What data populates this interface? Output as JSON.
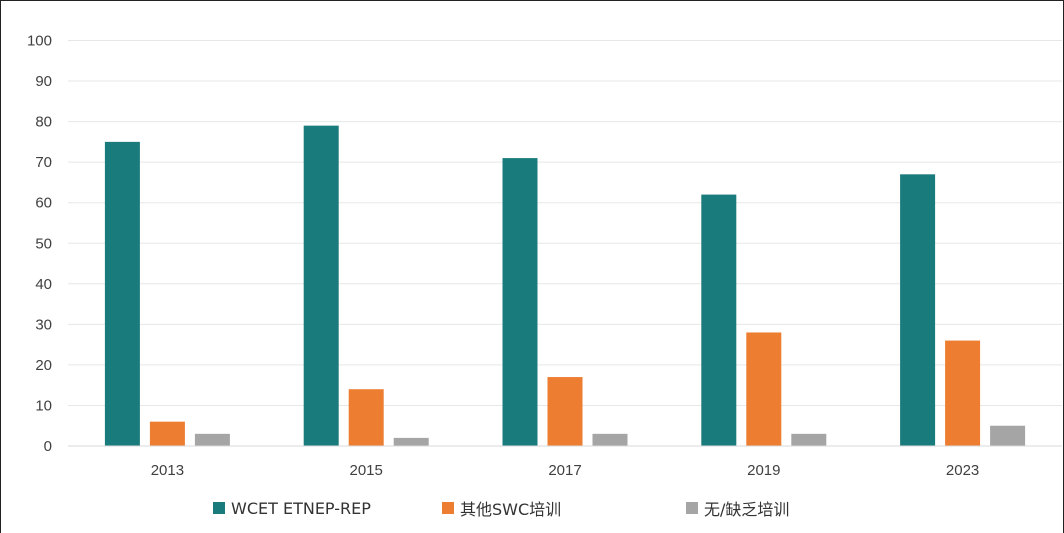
{
  "chart_data": {
    "type": "bar",
    "categories": [
      "2013",
      "2015",
      "2017",
      "2019",
      "2023"
    ],
    "series": [
      {
        "name": "WCET ETNEP-REP",
        "color": "#1a7b7d",
        "values": [
          75,
          79,
          71,
          62,
          67
        ]
      },
      {
        "name": "其他SWC培训",
        "color": "#ed7d31",
        "values": [
          6,
          14,
          17,
          28,
          26
        ]
      },
      {
        "name": "无/缺乏培训",
        "color": "#a5a5a5",
        "values": [
          3,
          2,
          3,
          3,
          5
        ]
      }
    ],
    "ylim": [
      0,
      100
    ],
    "yticks": [
      0,
      10,
      20,
      30,
      40,
      50,
      60,
      70,
      80,
      90,
      100
    ],
    "grid": true,
    "legend": "bottom"
  }
}
